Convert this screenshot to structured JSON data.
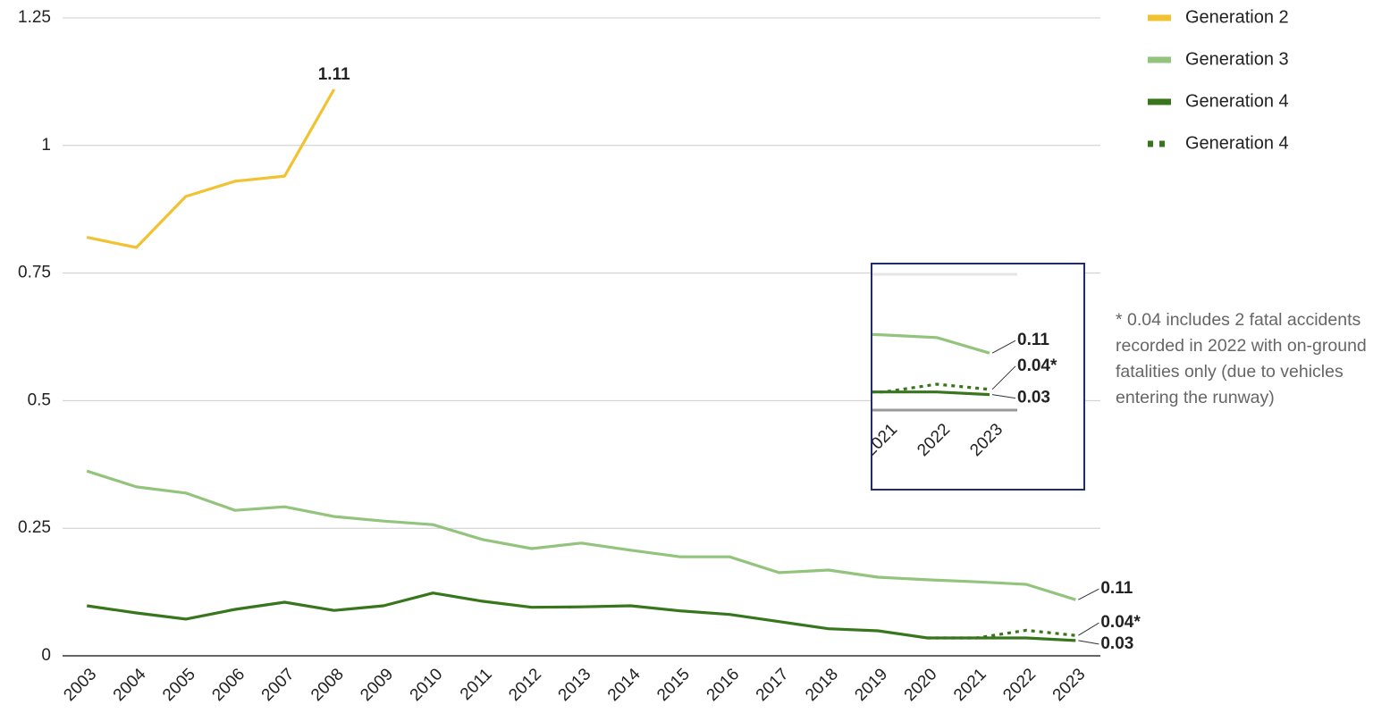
{
  "chart_data": {
    "type": "line",
    "categories": [
      "2003",
      "2004",
      "2005",
      "2006",
      "2007",
      "2008",
      "2009",
      "2010",
      "2011",
      "2012",
      "2013",
      "2014",
      "2015",
      "2016",
      "2017",
      "2018",
      "2019",
      "2020",
      "2021",
      "2022",
      "2023"
    ],
    "series": [
      {
        "name": "Generation 2",
        "color": "#f1c232",
        "dash": false,
        "values": [
          0.82,
          0.8,
          0.9,
          0.93,
          0.94,
          1.11,
          null,
          null,
          null,
          null,
          null,
          null,
          null,
          null,
          null,
          null,
          null,
          null,
          null,
          null,
          null
        ]
      },
      {
        "name": "Generation 3",
        "color": "#93c47d",
        "dash": false,
        "values": [
          0.362,
          0.331,
          0.319,
          0.285,
          0.292,
          0.273,
          0.264,
          0.257,
          0.228,
          0.21,
          0.221,
          0.207,
          0.194,
          0.194,
          0.163,
          0.168,
          0.154,
          0.149,
          0.145,
          0.14,
          0.11
        ]
      },
      {
        "name": "Generation 4",
        "color": "#38761d",
        "dash": false,
        "values": [
          0.098,
          0.084,
          0.072,
          0.091,
          0.105,
          0.089,
          0.098,
          0.123,
          0.107,
          0.095,
          0.096,
          0.098,
          0.088,
          0.081,
          0.067,
          0.053,
          0.049,
          0.035,
          0.035,
          0.035,
          0.03
        ]
      },
      {
        "name": "Generation 4",
        "color": "#38761d",
        "dash": true,
        "values": [
          null,
          null,
          null,
          null,
          null,
          null,
          null,
          null,
          null,
          null,
          null,
          null,
          null,
          null,
          null,
          null,
          null,
          0.035,
          0.035,
          0.05,
          0.04
        ],
        "value_labels": [
          null,
          null,
          null,
          null,
          null,
          null,
          null,
          null,
          null,
          null,
          null,
          null,
          null,
          null,
          null,
          null,
          null,
          null,
          null,
          null,
          "0.04*"
        ]
      }
    ],
    "ylim": [
      0,
      1.25
    ],
    "yticks": [
      0,
      0.25,
      0.5,
      0.75,
      1,
      1.25
    ],
    "grid": true,
    "legend": "right",
    "annotation": "* 0.04 includes 2 fatal accidents recorded in 2022 with on-ground fatalities only (due to vehicles entering the runway)"
  }
}
